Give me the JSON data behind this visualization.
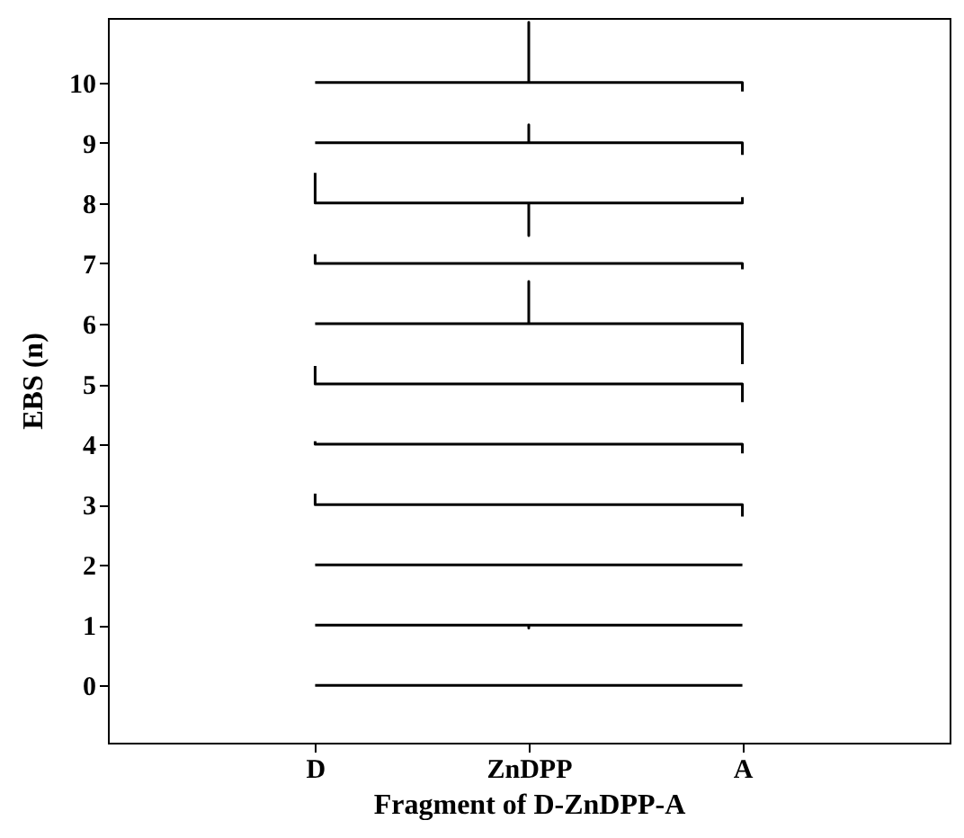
{
  "chart_data": {
    "type": "line",
    "xlabel": "Fragment of D-ZnDPP-A",
    "ylabel": "EBS (n)",
    "categories": [
      "D",
      "ZnDPP",
      "A"
    ],
    "ylim": [
      -0.95,
      11.07
    ],
    "yticks": [
      0,
      1,
      2,
      3,
      4,
      5,
      6,
      7,
      8,
      9,
      10
    ],
    "grid": false,
    "marker": "none",
    "line_style": "solid",
    "series": [
      {
        "color": "#000000",
        "x": [
          "D",
          "A"
        ],
        "values": [
          0,
          0
        ]
      },
      {
        "color": "#000000",
        "x": [
          "D",
          "ZnDPP",
          "ZnDPP",
          "ZnDPP",
          "A"
        ],
        "values": [
          1,
          1,
          0.95,
          1,
          1
        ]
      },
      {
        "color": "#000000",
        "x": [
          "D",
          "A"
        ],
        "values": [
          2,
          2
        ]
      },
      {
        "color": "#000000",
        "x": [
          "D",
          "D",
          "A",
          "A"
        ],
        "values": [
          3.18,
          3,
          3,
          2.8
        ]
      },
      {
        "color": "#000000",
        "x": [
          "D",
          "D",
          "A",
          "A"
        ],
        "values": [
          4.05,
          4,
          4,
          3.85
        ]
      },
      {
        "color": "#000000",
        "x": [
          "D",
          "D",
          "A",
          "A"
        ],
        "values": [
          5.3,
          5,
          5,
          4.7
        ]
      },
      {
        "color": "#000000",
        "x": [
          "D",
          "ZnDPP",
          "ZnDPP",
          "ZnDPP",
          "A",
          "A"
        ],
        "values": [
          6,
          6,
          6.7,
          6,
          6,
          5.33
        ]
      },
      {
        "color": "#000000",
        "x": [
          "D",
          "D",
          "A",
          "A"
        ],
        "values": [
          7.15,
          7,
          7,
          6.9
        ]
      },
      {
        "color": "#000000",
        "x": [
          "D",
          "D",
          "ZnDPP",
          "ZnDPP",
          "ZnDPP",
          "A",
          "A"
        ],
        "values": [
          8.5,
          8,
          8,
          7.46,
          8,
          8,
          8.1
        ]
      },
      {
        "color": "#000000",
        "x": [
          "D",
          "ZnDPP",
          "ZnDPP",
          "ZnDPP",
          "A",
          "A"
        ],
        "values": [
          9,
          9,
          9.3,
          9,
          9,
          8.8
        ]
      },
      {
        "color": "#000000",
        "x": [
          "D",
          "ZnDPP",
          "ZnDPP",
          "ZnDPP",
          "A",
          "A"
        ],
        "values": [
          10,
          10,
          11,
          10,
          10,
          9.85
        ]
      }
    ]
  }
}
